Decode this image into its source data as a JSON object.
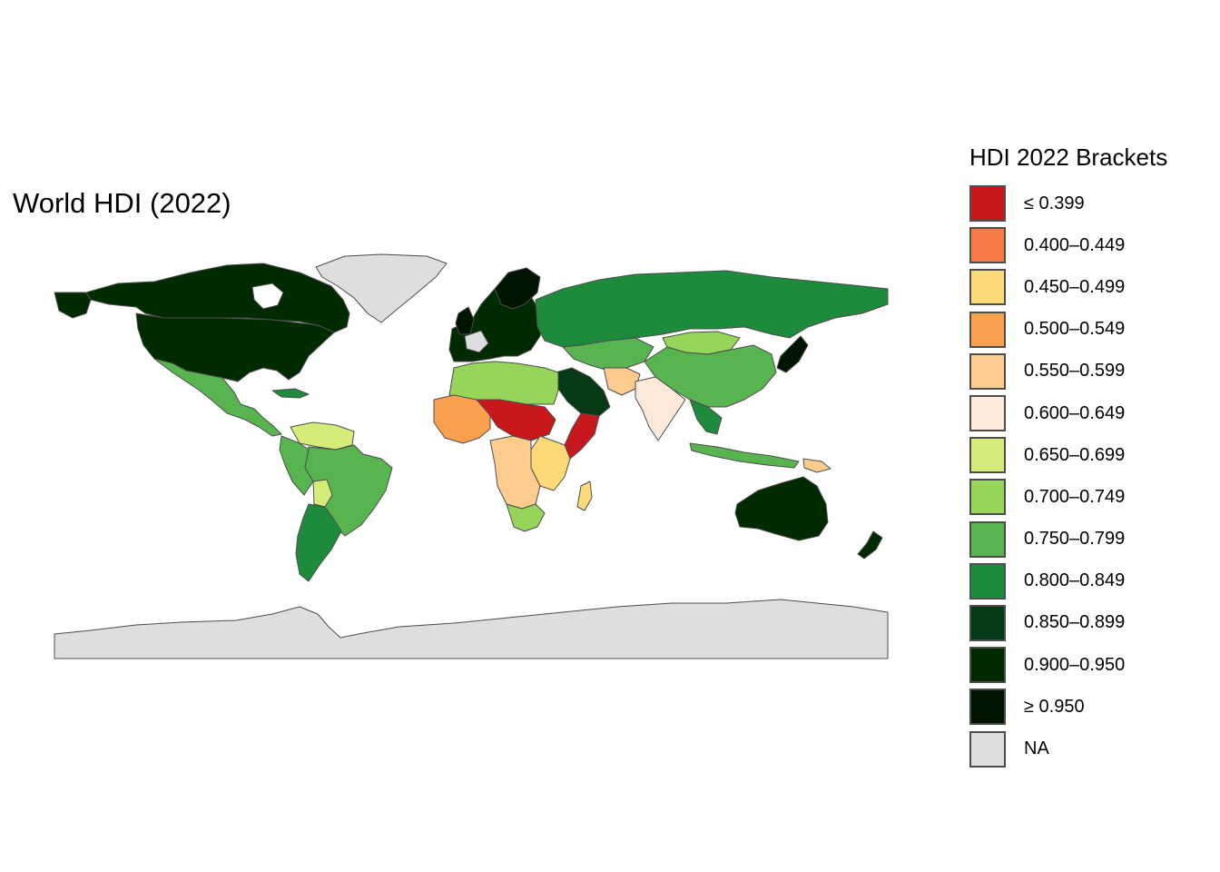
{
  "title": "World HDI (2022)",
  "legend": {
    "title": "HDI 2022 Brackets",
    "items": [
      {
        "label": "≤ 0.399",
        "color": "#c8181e"
      },
      {
        "label": "0.400–0.449",
        "color": "#f57a45"
      },
      {
        "label": "0.450–0.499",
        "color": "#fdda78"
      },
      {
        "label": "0.500–0.549",
        "color": "#fba04e"
      },
      {
        "label": "0.550–0.599",
        "color": "#fccc8e"
      },
      {
        "label": "0.600–0.649",
        "color": "#fde9d9"
      },
      {
        "label": "0.650–0.699",
        "color": "#d4ec79"
      },
      {
        "label": "0.700–0.749",
        "color": "#96d55a"
      },
      {
        "label": "0.750–0.799",
        "color": "#57b44f"
      },
      {
        "label": "0.800–0.849",
        "color": "#1d8a3c"
      },
      {
        "label": "0.850–0.899",
        "color": "#063a16"
      },
      {
        "label": "0.900–0.950",
        "color": "#002a00"
      },
      {
        "label": "≥ 0.950",
        "color": "#001500"
      },
      {
        "label": "NA",
        "color": "#dedede"
      }
    ]
  }
}
